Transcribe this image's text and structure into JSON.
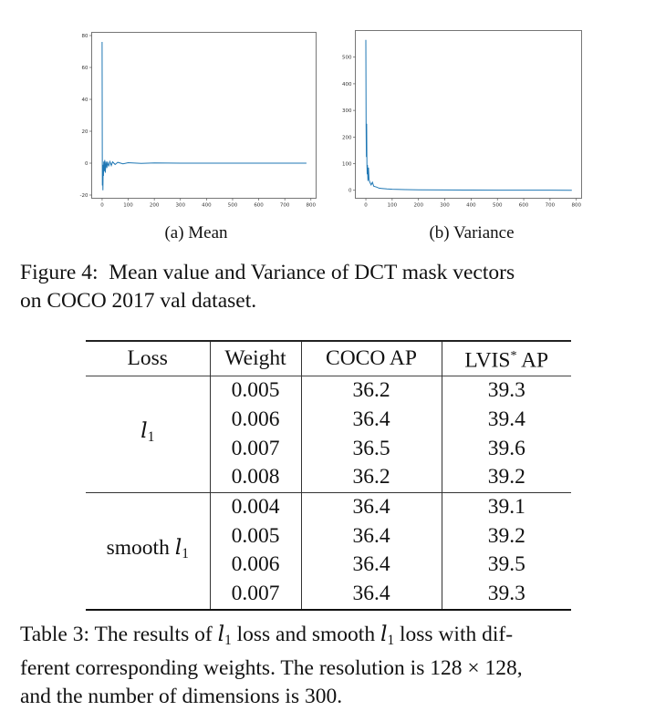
{
  "figure": {
    "subfigures": [
      {
        "label": "(a) Mean"
      },
      {
        "label": "(b) Variance"
      }
    ],
    "caption_line1": "Figure 4:  Mean value and Variance of DCT mask vectors",
    "caption_line2": "on COCO 2017 val dataset."
  },
  "chart_data": [
    {
      "type": "line",
      "title": "(a) Mean",
      "xlabel": "",
      "ylabel": "",
      "xlim": [
        -40,
        820
      ],
      "ylim": [
        -22,
        82
      ],
      "xticks": [
        0,
        100,
        200,
        300,
        400,
        500,
        600,
        700,
        800
      ],
      "yticks": [
        -20,
        0,
        20,
        40,
        60,
        80
      ],
      "series": [
        {
          "name": "mean",
          "color": "#1f77b4",
          "x": [
            0,
            1,
            2,
            3,
            4,
            5,
            6,
            8,
            10,
            12,
            15,
            18,
            21,
            25,
            30,
            35,
            40,
            50,
            60,
            80,
            100,
            150,
            200,
            300,
            400,
            500,
            600,
            700,
            783
          ],
          "values": [
            76,
            -14,
            -3,
            -17,
            -1,
            -8,
            1,
            -5,
            2,
            -6,
            1,
            -3,
            1,
            -2,
            1,
            -1.5,
            0.8,
            -0.8,
            0.5,
            -0.4,
            0.3,
            -0.2,
            0.1,
            0,
            0,
            0,
            0,
            0,
            0
          ]
        }
      ],
      "grid": false,
      "legend": false
    },
    {
      "type": "line",
      "title": "(b) Variance",
      "xlabel": "",
      "ylabel": "",
      "xlim": [
        -40,
        820
      ],
      "ylim": [
        -30,
        600
      ],
      "xticks": [
        0,
        100,
        200,
        300,
        400,
        500,
        600,
        700,
        800
      ],
      "yticks": [
        0,
        100,
        200,
        300,
        400,
        500
      ],
      "series": [
        {
          "name": "variance",
          "color": "#1f77b4",
          "x": [
            0,
            1,
            2,
            3,
            4,
            5,
            6,
            8,
            10,
            12,
            15,
            20,
            25,
            30,
            40,
            50,
            60,
            80,
            100,
            150,
            200,
            300,
            400,
            500,
            600,
            700,
            783
          ],
          "values": [
            565,
            240,
            125,
            250,
            100,
            60,
            95,
            35,
            85,
            40,
            30,
            20,
            30,
            15,
            12,
            8,
            7,
            5,
            4,
            2.5,
            1.5,
            1,
            0.8,
            0.6,
            0.5,
            0.4,
            0.3
          ]
        }
      ],
      "grid": false,
      "legend": false
    },
    {
      "type": "table",
      "title": "Table 3",
      "columns": [
        "Loss",
        "Weight",
        "COCO AP",
        "LVIS* AP"
      ],
      "rows": [
        [
          "l1",
          "0.005",
          "36.2",
          "39.3"
        ],
        [
          "l1",
          "0.006",
          "36.4",
          "39.4"
        ],
        [
          "l1",
          "0.007",
          "36.5",
          "39.6"
        ],
        [
          "l1",
          "0.008",
          "36.2",
          "39.2"
        ],
        [
          "smooth l1",
          "0.004",
          "36.4",
          "39.1"
        ],
        [
          "smooth l1",
          "0.005",
          "36.4",
          "39.2"
        ],
        [
          "smooth l1",
          "0.006",
          "36.4",
          "39.5"
        ],
        [
          "smooth l1",
          "0.007",
          "36.4",
          "39.3"
        ]
      ]
    }
  ],
  "table": {
    "headers": {
      "loss": "Loss",
      "weight": "Weight",
      "coco": "COCO AP",
      "lvis": "LVIS",
      "lvis_star": "*",
      "lvis_ap": " AP"
    },
    "groups": [
      {
        "loss_prefix": "",
        "loss_var": "l",
        "loss_sub": "1",
        "rows": [
          {
            "weight": "0.005",
            "coco": "36.2",
            "lvis": "39.3"
          },
          {
            "weight": "0.006",
            "coco": "36.4",
            "lvis": "39.4"
          },
          {
            "weight": "0.007",
            "coco": "36.5",
            "lvis": "39.6"
          },
          {
            "weight": "0.008",
            "coco": "36.2",
            "lvis": "39.2"
          }
        ]
      },
      {
        "loss_prefix": "smooth ",
        "loss_var": "l",
        "loss_sub": "1",
        "rows": [
          {
            "weight": "0.004",
            "coco": "36.4",
            "lvis": "39.1"
          },
          {
            "weight": "0.005",
            "coco": "36.4",
            "lvis": "39.2"
          },
          {
            "weight": "0.006",
            "coco": "36.4",
            "lvis": "39.5"
          },
          {
            "weight": "0.007",
            "coco": "36.4",
            "lvis": "39.3"
          }
        ]
      }
    ],
    "caption": {
      "line1_a": "Table 3: The results of ",
      "line1_var": "l",
      "line1_sub": "1",
      "line1_b": " loss and smooth ",
      "line1_var2": "l",
      "line1_sub2": "1",
      "line1_c": " loss with dif-",
      "line2_a": "ferent corresponding weights. The resolution is ",
      "line2_math": "128 × 128",
      "line2_b": ",",
      "line3": "and the number of dimensions is 300."
    }
  }
}
